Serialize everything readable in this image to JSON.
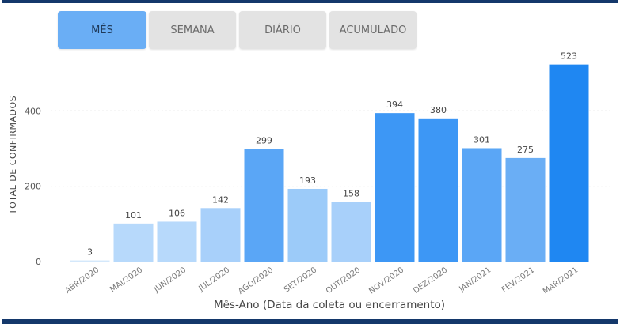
{
  "tabs": [
    {
      "label": "MÊS",
      "active": true
    },
    {
      "label": "SEMANA",
      "active": false
    },
    {
      "label": "DIÁRIO",
      "active": false
    },
    {
      "label": "ACUMULADO",
      "active": false
    }
  ],
  "colors": {
    "frame": "#14386b",
    "tab_active": "#6aaef5",
    "tab_inactive": "#e3e3e3"
  },
  "chart_data": {
    "type": "bar",
    "categories": [
      "ABR/2020",
      "MAI/2020",
      "JUN/2020",
      "JUL/2020",
      "AGO/2020",
      "SET/2020",
      "OUT/2020",
      "NOV/2020",
      "DEZ/2020",
      "JAN/2021",
      "FEV/2021",
      "MAR/2021"
    ],
    "values": [
      3,
      101,
      106,
      142,
      299,
      193,
      158,
      394,
      380,
      301,
      275,
      523
    ],
    "bar_colors": [
      "#d4e8fb",
      "#b7d9fb",
      "#b7d9fb",
      "#a8d0fa",
      "#5aa6f6",
      "#9ccbf9",
      "#a8d0fa",
      "#3d97f5",
      "#3d97f5",
      "#5aa6f6",
      "#6aaef5",
      "#1f87f2"
    ],
    "xlabel": "Mês-Ano (Data da coleta ou encerramento)",
    "ylabel": "TOTAL DE CONFIRMADOS",
    "ylim": [
      0,
      560
    ],
    "yticks": [
      0,
      200,
      400
    ],
    "grid": true,
    "data_labels": true
  }
}
